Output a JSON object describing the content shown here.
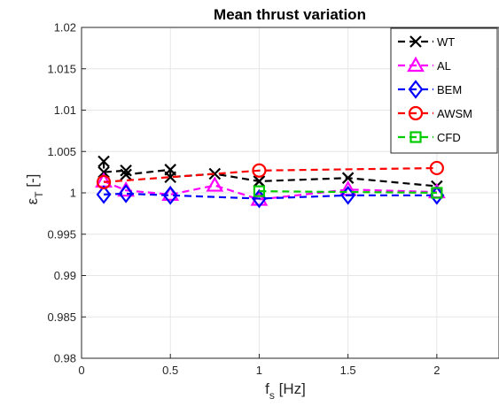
{
  "chart_data": {
    "type": "line",
    "title": "Mean thrust variation",
    "xlabel": {
      "main": "f",
      "sub": "s",
      "unit": " [Hz]"
    },
    "ylabel": {
      "main": "ε",
      "sub": "T",
      "unit": " [-]"
    },
    "xlim": [
      0,
      2.35
    ],
    "ylim": [
      0.98,
      1.02
    ],
    "xticks": [
      0,
      0.5,
      1,
      1.5,
      2
    ],
    "xtick_labels": [
      "0",
      "0.5",
      "1",
      "1.5",
      "2"
    ],
    "yticks": [
      0.98,
      0.985,
      0.99,
      0.995,
      1,
      1.005,
      1.01,
      1.015,
      1.02
    ],
    "ytick_labels": [
      "0.98",
      "0.985",
      "0.99",
      "0.995",
      "1",
      "1.005",
      "1.01",
      "1.015",
      "1.02"
    ],
    "grid": true,
    "legend_position": "top-right",
    "series": [
      {
        "name": "WT",
        "color": "#000000",
        "marker": "x",
        "x": [
          0.125,
          0.125,
          0.25,
          0.25,
          0.5,
          0.5,
          0.75,
          1.0,
          1.0,
          1.5,
          2.0
        ],
        "y": [
          1.0038,
          1.0025,
          1.0027,
          1.0022,
          1.0028,
          1.0019,
          1.0023,
          1.0014,
          1.0014,
          1.0018,
          1.0008
        ]
      },
      {
        "name": "AL",
        "color": "#ff00ff",
        "marker": "triangle",
        "x": [
          0.125,
          0.25,
          0.5,
          0.75,
          1.0,
          1.5,
          2.0
        ],
        "y": [
          1.0014,
          1.0003,
          0.9998,
          1.0009,
          0.9992,
          1.0004,
          1.0001
        ]
      },
      {
        "name": "BEM",
        "color": "#0000ff",
        "marker": "diamond",
        "x": [
          0.125,
          0.25,
          0.5,
          1.0,
          1.5,
          2.0
        ],
        "y": [
          0.9998,
          0.9999,
          0.9997,
          0.9993,
          0.9997,
          0.9997
        ]
      },
      {
        "name": "AWSM",
        "color": "#ff0000",
        "marker": "circle",
        "x": [
          0.125,
          1.0,
          2.0
        ],
        "y": [
          1.0013,
          1.0027,
          1.003
        ]
      },
      {
        "name": "CFD",
        "color": "#00cc00",
        "marker": "square",
        "x": [
          1.0,
          2.0
        ],
        "y": [
          1.0002,
          1.0
        ]
      }
    ]
  }
}
